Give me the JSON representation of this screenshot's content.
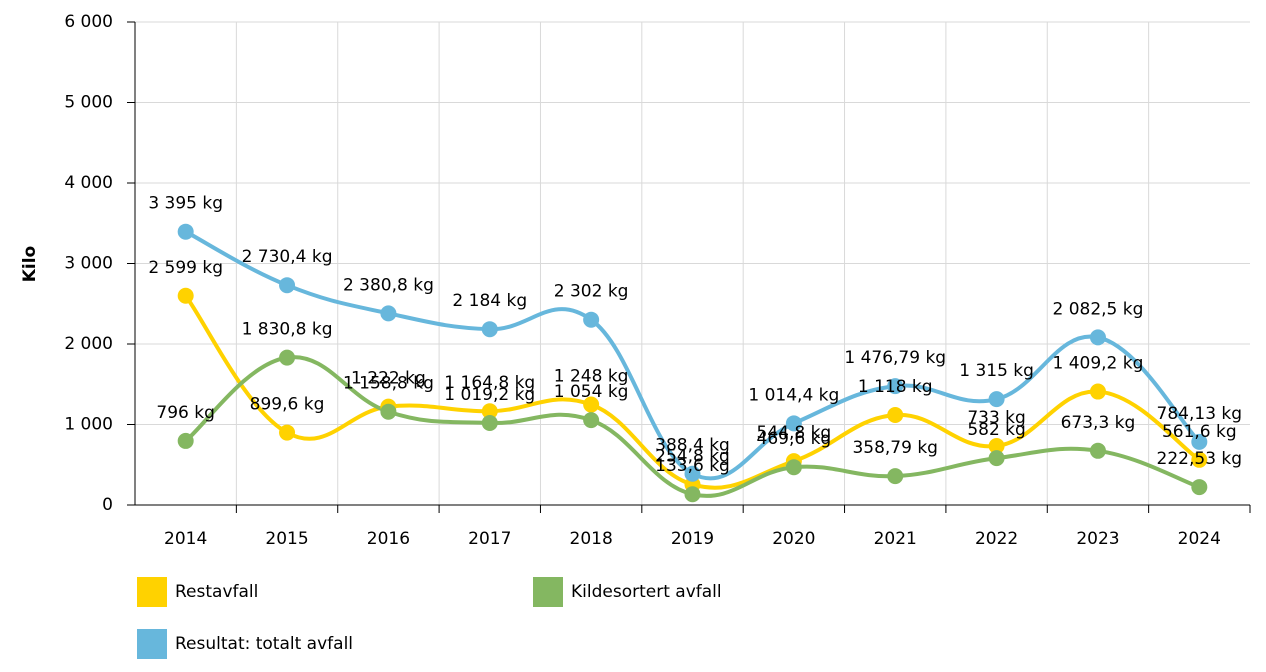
{
  "chart_data": {
    "type": "line",
    "y_label": "Kilo",
    "categories": [
      "2014",
      "2015",
      "2016",
      "2017",
      "2018",
      "2019",
      "2020",
      "2021",
      "2022",
      "2023",
      "2024"
    ],
    "ylim": [
      0,
      6000
    ],
    "yticks": [
      0,
      {
        "value": 1000,
        "label": "1 000"
      },
      {
        "value": 2000,
        "label": "2 000"
      },
      {
        "value": 3000,
        "label": "3 000"
      },
      {
        "value": 4000,
        "label": "4 000"
      },
      {
        "value": 5000,
        "label": "5 000"
      },
      {
        "value": 6000,
        "label": "6 000"
      }
    ],
    "grid": true,
    "legend": "bottom",
    "series": [
      {
        "name": "Restavfall",
        "color": "#ffd200",
        "values": [
          2599,
          899.6,
          1222,
          1164.8,
          1248,
          254.8,
          544.8,
          1118,
          733,
          1409.2,
          561.6
        ],
        "value_labels": [
          "2 599 kg",
          "899,6 kg",
          "1 222 kg",
          "1 164,8 kg",
          "1 248 kg",
          "254,8 kg",
          "544,8 kg",
          "1 118 kg",
          "733 kg",
          "1 409,2 kg",
          "561,6 kg"
        ]
      },
      {
        "name": "Kildesortert avfall",
        "color": "#84b761",
        "values": [
          796,
          1830.8,
          1158.8,
          1019.2,
          1054,
          133.6,
          469.6,
          358.79,
          582,
          673.3,
          222.53
        ],
        "value_labels": [
          "796 kg",
          "1 830,8 kg",
          "1 158,8 kg",
          "1 019,2 kg",
          "1 054 kg",
          "133,6 kg",
          "469,6 kg",
          "358,79 kg",
          "582 kg",
          "673,3 kg",
          "222,53 kg"
        ]
      },
      {
        "name": "Resultat: totalt avfall",
        "color": "#67b7dc",
        "values": [
          3395,
          2730.4,
          2380.8,
          2184,
          2302,
          388.4,
          1014.4,
          1476.79,
          1315,
          2082.5,
          784.13
        ],
        "value_labels": [
          "3 395 kg",
          "2 730,4 kg",
          "2 380,8 kg",
          "2 184 kg",
          "2 302 kg",
          "388,4 kg",
          "1 014,4 kg",
          "1 476,79 kg",
          "1 315 kg",
          "2 082,5 kg",
          "784,13 kg"
        ]
      }
    ]
  }
}
